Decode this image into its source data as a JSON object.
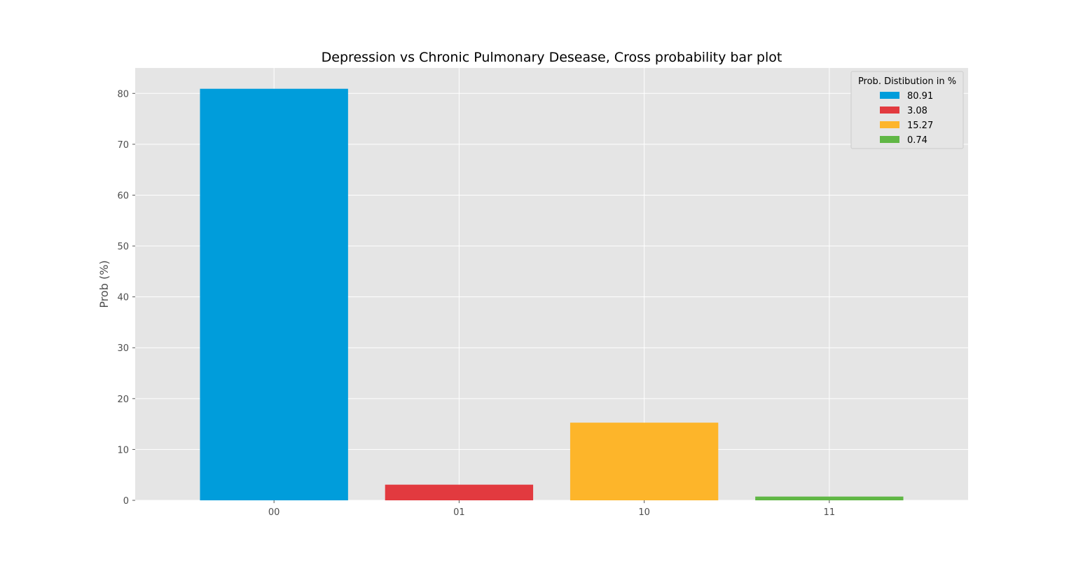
{
  "chart_data": {
    "type": "bar",
    "title": "Depression vs Chronic Pulmonary Desease, Cross probability bar plot",
    "xlabel": "",
    "ylabel": "Prob (%)",
    "categories": [
      "00",
      "01",
      "10",
      "11"
    ],
    "values": [
      80.91,
      3.08,
      15.27,
      0.74
    ],
    "colors": [
      "#009ddb",
      "#e23a3f",
      "#fdb52a",
      "#60b745"
    ],
    "ylim": [
      0,
      85
    ],
    "yticks": [
      0,
      10,
      20,
      30,
      40,
      50,
      60,
      70,
      80
    ],
    "grid": true,
    "legend": {
      "title": "Prob. Distibution in %",
      "placement": "top-right",
      "entries": [
        "80.91",
        "3.08",
        "15.27",
        "0.74"
      ]
    }
  }
}
